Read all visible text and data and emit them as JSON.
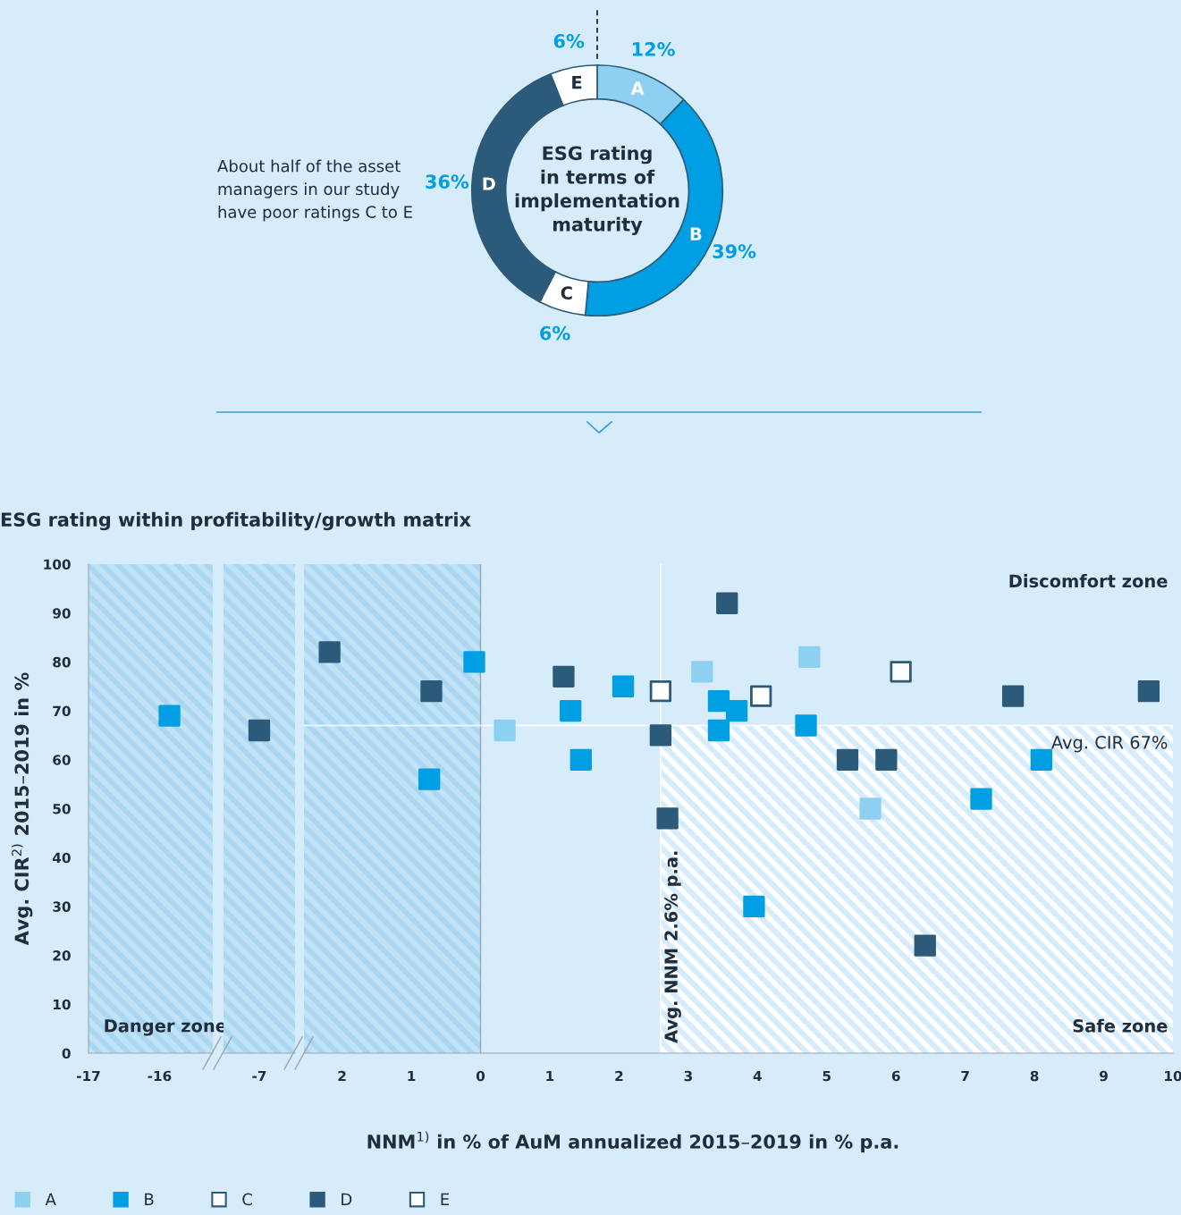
{
  "chart_data": [
    {
      "type": "donut",
      "title": "ESG rating\nin terms of\nimplementation\nmaturity",
      "categories": [
        "A",
        "B",
        "C",
        "D",
        "E"
      ],
      "values": [
        12,
        39,
        6,
        36,
        6
      ],
      "colors": [
        "#8dd0f2",
        "#009fe3",
        "#ffffff",
        "#2c5a7a",
        "#ffffff"
      ],
      "value_labels": [
        "12%",
        "39%",
        "6%",
        "36%",
        "6%"
      ],
      "annotations": [
        "About half of the asset\nmanagers in our study\nhave poor ratings C to E"
      ]
    },
    {
      "type": "scatter",
      "title": "ESG rating within profitability/growth matrix",
      "ylabel": "Avg. CIR$^{2)}$ 2015–2019 in %",
      "xlim": [
        -17,
        -15.25
      ],
      "ylim": [
        0,
        100
      ],
      "xticks": [
        -17,
        -16
      ],
      "yticks": [
        0,
        10,
        20,
        30,
        40,
        50,
        60,
        70,
        80,
        90,
        100
      ],
      "marker": "square",
      "series": [
        {
          "color": "#009fe3",
          "x": [
            -15.86
          ],
          "values": [
            69
          ]
        }
      ],
      "bands": [
        {
          "axis": "x",
          "from": -17,
          "to": -15.25,
          "label": "Danger zone",
          "color": "#a9d6f2"
        }
      ]
    },
    {
      "type": "scatter",
      "categories": [
        "-7"
      ],
      "ylim": [
        0,
        100
      ],
      "tick_labels": "x",
      "marker": "square",
      "series": [
        {
          "color": "#2c5a7a",
          "x": [
            "-7"
          ],
          "values": [
            66
          ]
        }
      ]
    },
    {
      "type": "scatter",
      "xlabel": "NNM$^{1)}$ in % of AuM annualized 2015–2019 in % p.a.",
      "xlim": [
        -2.55,
        10
      ],
      "ylim": [
        0,
        100
      ],
      "xticks": [
        {
          "value": -2,
          "label": "2"
        },
        {
          "value": -1,
          "label": "1"
        },
        0,
        1,
        2,
        3,
        4,
        5,
        6,
        7,
        8,
        9,
        10
      ],
      "tick_labels": "x",
      "marker": "square",
      "legend": "bottom",
      "series": [
        {
          "name": "A",
          "color": "#8dd0f2",
          "x": [
            0.35,
            3.2,
            4.75,
            5.63
          ],
          "values": [
            66,
            78,
            81,
            50
          ]
        },
        {
          "name": "B",
          "color": "#009fe3",
          "x": [
            -0.74,
            -0.09,
            1.3,
            1.45,
            2.06,
            3.44,
            3.44,
            3.7,
            3.95,
            4.7,
            7.23,
            8.1
          ],
          "values": [
            56,
            80,
            70,
            60,
            75,
            72,
            66,
            70,
            30,
            67,
            52,
            60
          ]
        },
        {
          "name": "C",
          "color": "#ffffff",
          "x": [
            2.6
          ],
          "values": [
            74
          ]
        },
        {
          "name": "D",
          "color": "#2c5a7a",
          "x": [
            -2.18,
            -0.71,
            1.2,
            2.6,
            2.7,
            3.56,
            5.3,
            5.86,
            6.42,
            7.69,
            9.65
          ],
          "values": [
            82,
            74,
            77,
            65,
            48,
            92,
            60,
            60,
            22,
            73,
            74
          ]
        },
        {
          "name": "E",
          "color": "#ffffff",
          "x": [
            4.05,
            6.07
          ],
          "values": [
            73,
            78
          ]
        }
      ],
      "bands": [
        {
          "axis": "x",
          "from": -2.55,
          "to": 0,
          "color": "#a9d6f2"
        }
      ],
      "ref_lines": [
        {
          "axis": "x",
          "value": 2.6,
          "label": "Avg. NNM 2.6% p.a."
        },
        {
          "axis": "y",
          "value": 67,
          "label": "Avg. CIR 67%"
        }
      ],
      "annotations": [
        "Discomfort zone",
        "Safe zone"
      ]
    }
  ]
}
